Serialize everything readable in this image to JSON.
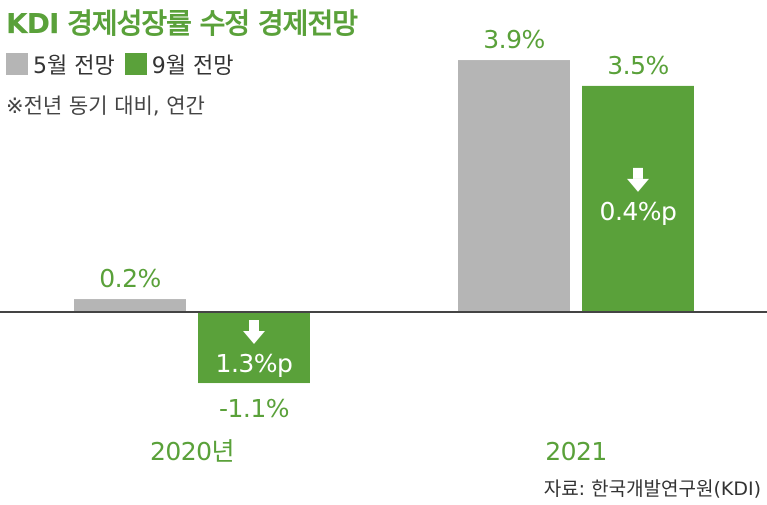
{
  "title": "KDI 경제성장률 수정 경제전망",
  "note": "※전년 동기 대비, 연간",
  "source": "자료: 한국개발연구원(KDI)",
  "colors": {
    "may": "#b5b5b5",
    "sep": "#5aa13a",
    "label": "#5aa13a",
    "axis": "#444444"
  },
  "chart_data": {
    "type": "bar",
    "categories": [
      "2020년",
      "2021"
    ],
    "series": [
      {
        "name": "5월 전망",
        "values": [
          0.2,
          3.9
        ],
        "labels": [
          "0.2%",
          "3.9%"
        ]
      },
      {
        "name": "9월 전망",
        "values": [
          -1.1,
          3.5
        ],
        "labels": [
          "-1.1%",
          "3.5%"
        ]
      }
    ],
    "annotations": [
      {
        "category": "2020년",
        "text": "1.3%p",
        "direction": "down"
      },
      {
        "category": "2021",
        "text": "0.4%p",
        "direction": "down"
      }
    ],
    "ylim": [
      -1.1,
      3.9
    ],
    "grid": false,
    "legend": "top-left"
  }
}
